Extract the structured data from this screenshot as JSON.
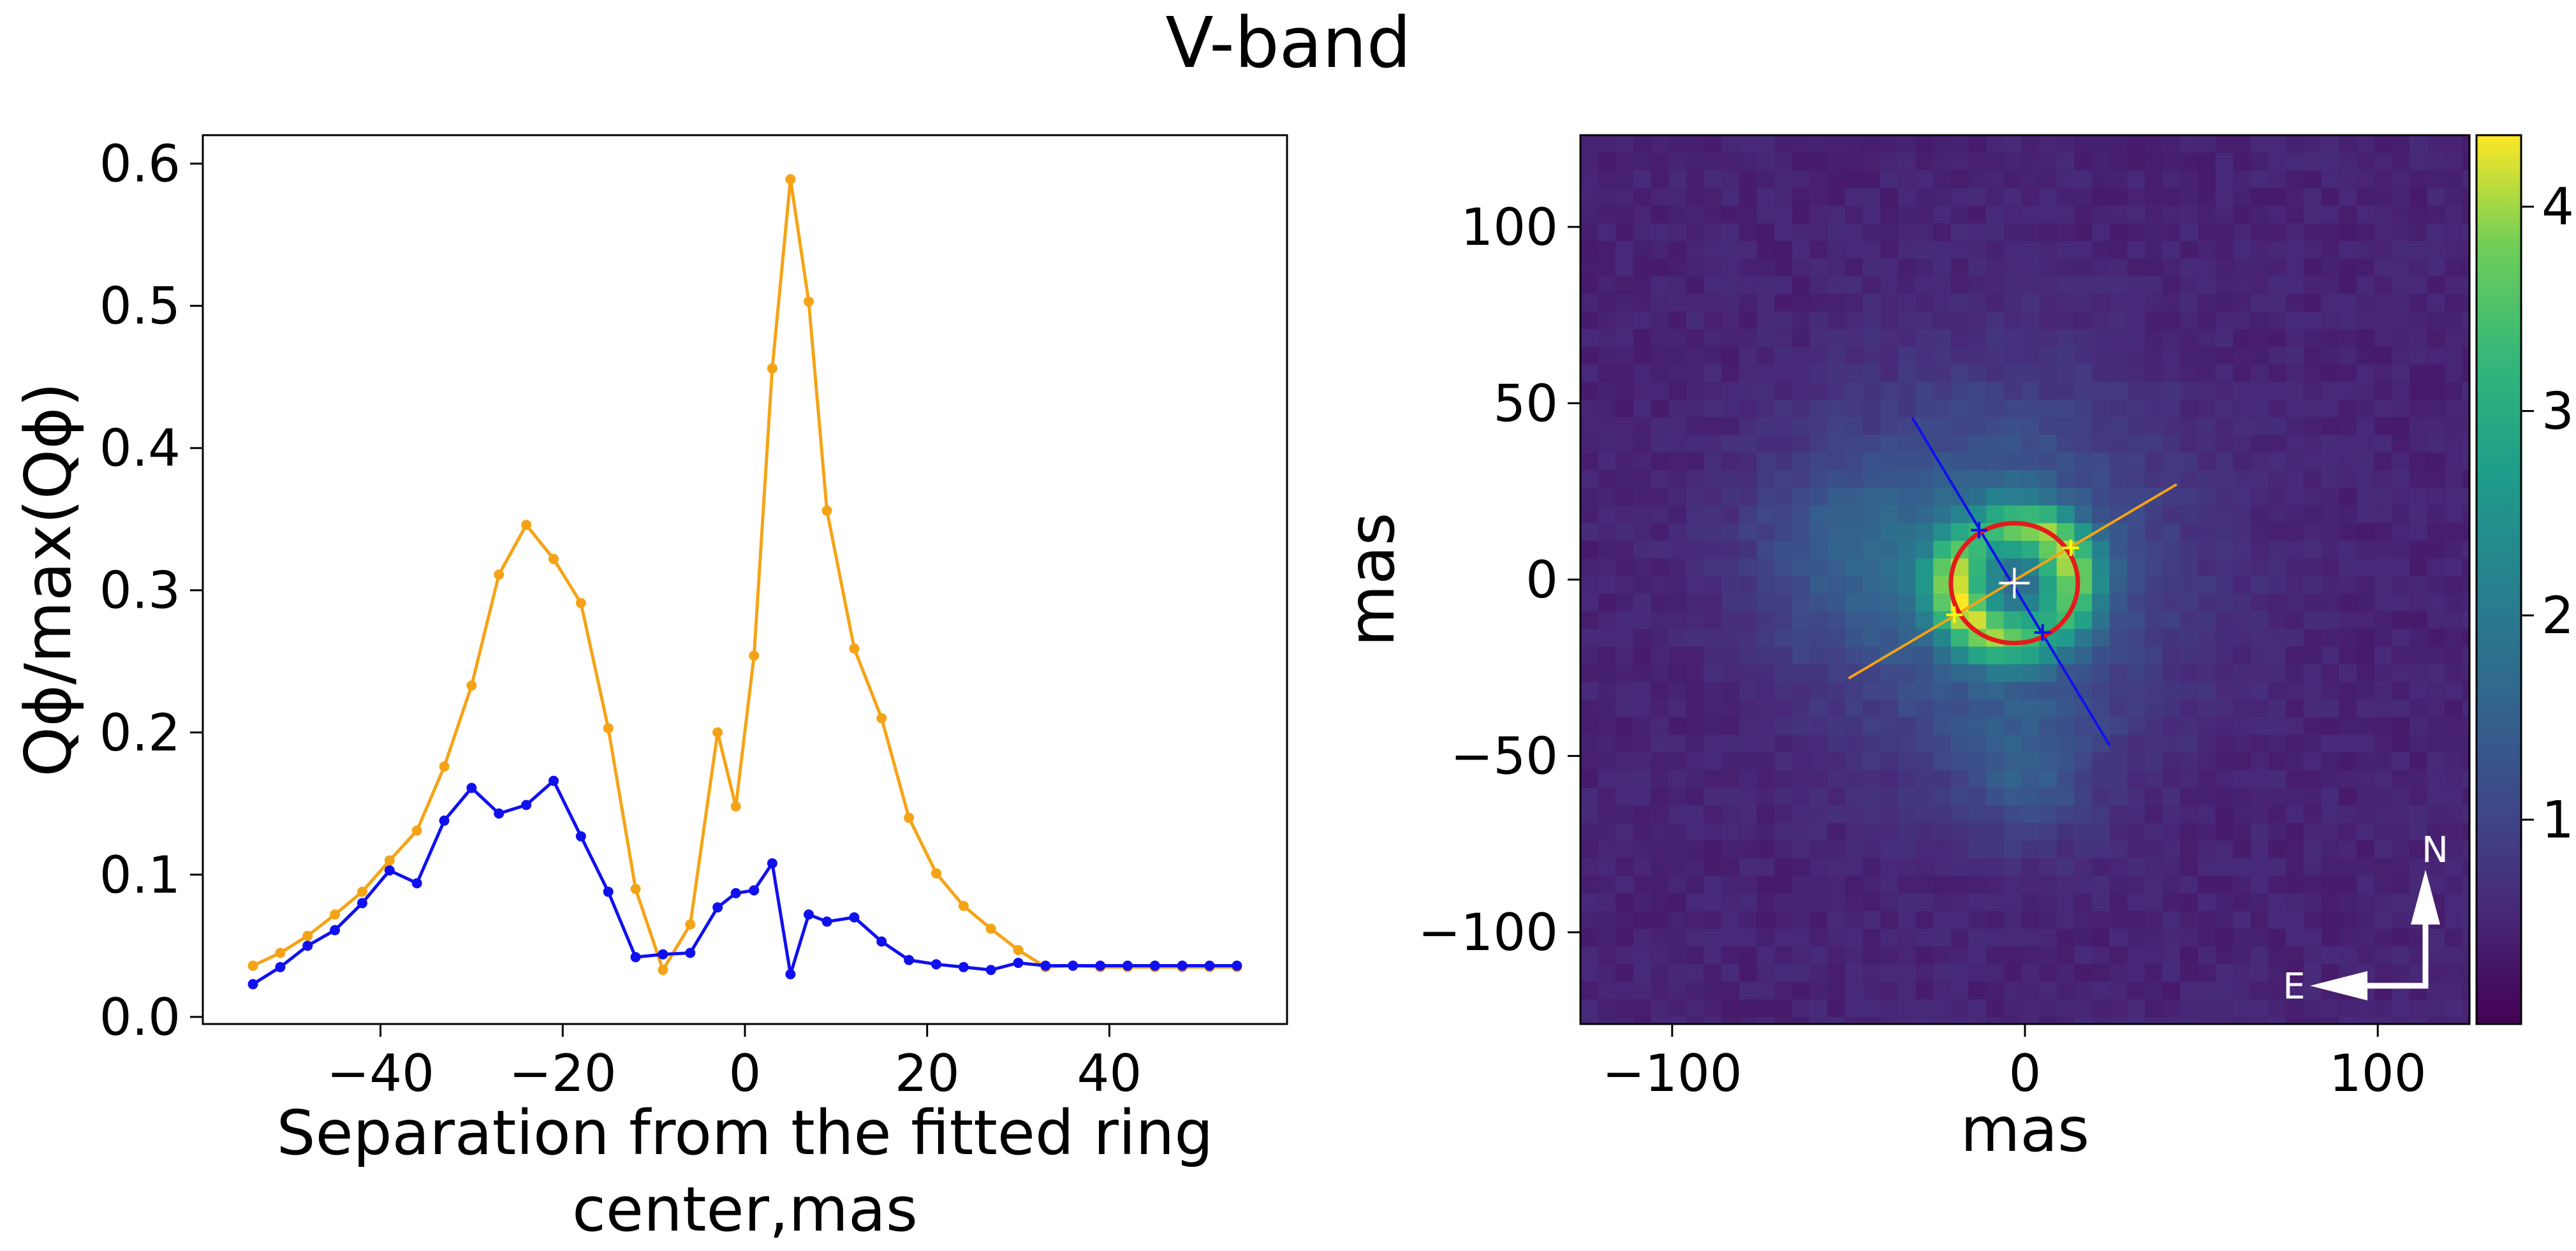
{
  "figure_title": "V-band",
  "colors": {
    "orange": "#f5a316",
    "blue": "#1010ee",
    "ring": "#e41a1c",
    "marker_yellow": "#ffff00",
    "arrow": "#ffffff"
  },
  "chart_data": [
    {
      "type": "line",
      "title": "",
      "xlabel_lines": [
        "Separation from the fitted ring",
        "center,mas"
      ],
      "ylabel": "Qϕ/max(Qϕ)",
      "xlim": [
        -59.5,
        59.5
      ],
      "ylim": [
        -0.005,
        0.62
      ],
      "xticks": [
        -40,
        -20,
        0,
        20,
        40
      ],
      "xtick_labels": [
        "−40",
        "−20",
        "0",
        "20",
        "40"
      ],
      "yticks": [
        0.0,
        0.1,
        0.2,
        0.3,
        0.4,
        0.5,
        0.6
      ],
      "ytick_labels": [
        "0.0",
        "0.1",
        "0.2",
        "0.3",
        "0.4",
        "0.5",
        "0.6"
      ],
      "x": [
        -54,
        -51,
        -48,
        -45,
        -42,
        -39,
        -36,
        -33,
        -30,
        -27,
        -24,
        -21,
        -18,
        -15,
        -12,
        -9,
        -6,
        -3,
        -1,
        1,
        3,
        5,
        7,
        9,
        12,
        15,
        18,
        21,
        24,
        27,
        30,
        33,
        36,
        39,
        42,
        45,
        48,
        51,
        54
      ],
      "series": [
        {
          "name": "orange",
          "color": "#f5a316",
          "values": [
            0.036,
            0.045,
            0.057,
            0.072,
            0.088,
            0.11,
            0.131,
            0.176,
            0.233,
            0.311,
            0.346,
            0.322,
            0.291,
            0.203,
            0.09,
            0.033,
            0.065,
            0.2,
            0.148,
            0.254,
            0.456,
            0.589,
            0.503,
            0.356,
            0.259,
            0.21,
            0.14,
            0.101,
            0.078,
            0.062,
            0.047,
            0.035,
            0.036,
            0.035,
            0.035,
            0.035,
            0.035,
            0.035,
            0.035
          ]
        },
        {
          "name": "blue",
          "color": "#1010ee",
          "values": [
            0.023,
            0.035,
            0.05,
            0.061,
            0.08,
            0.103,
            0.094,
            0.138,
            0.161,
            0.143,
            0.149,
            0.166,
            0.127,
            0.088,
            0.042,
            0.044,
            0.045,
            0.077,
            0.087,
            0.089,
            0.108,
            0.03,
            0.072,
            0.067,
            0.07,
            0.053,
            0.04,
            0.037,
            0.035,
            0.033,
            0.038,
            0.036,
            0.036,
            0.036,
            0.036,
            0.036,
            0.036,
            0.036,
            0.036
          ]
        }
      ]
    },
    {
      "type": "heatmap",
      "title": "",
      "xlabel": "mas",
      "ylabel": "mas",
      "xlim": [
        -126,
        126
      ],
      "ylim": [
        -126,
        126
      ],
      "xticks": [
        -100,
        0,
        100
      ],
      "xtick_labels": [
        "−100",
        "0",
        "100"
      ],
      "yticks": [
        -100,
        -50,
        0,
        50,
        100
      ],
      "ytick_labels": [
        "−100",
        "−50",
        "0",
        "50",
        "100"
      ],
      "colormap": "viridis",
      "color_range": [
        0,
        4.35
      ],
      "colorbar_ticks": [
        1,
        2,
        3,
        4
      ],
      "colorbar_tick_labels": [
        "1",
        "2",
        "3",
        "4"
      ],
      "features": {
        "ring_center": [
          -3,
          -1
        ],
        "ring_radius_x": 18,
        "ring_radius_y": 17,
        "blue_line": [
          [
            -32,
            46
          ],
          [
            24,
            -47
          ]
        ],
        "orange_line": [
          [
            -50,
            -28
          ],
          [
            43,
            27
          ]
        ],
        "blue_markers": [
          [
            -13,
            14
          ],
          [
            5,
            -15
          ]
        ],
        "yellow_markers": [
          [
            -20,
            -10
          ],
          [
            13,
            9
          ]
        ]
      },
      "compass": {
        "north_label": "N",
        "east_label": "E"
      }
    }
  ]
}
